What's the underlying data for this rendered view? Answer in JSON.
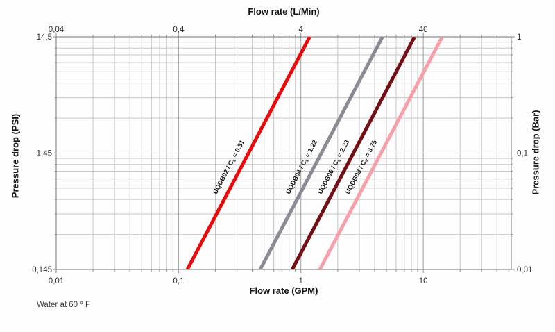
{
  "chart_data": {
    "type": "line",
    "title": "",
    "x_scale": "log",
    "y_scale": "log",
    "xlabel_top": "Flow rate (L/Min)",
    "xlabel_bottom": "Flow rate (GPM)",
    "ylabel_left": "Pressure drop (PSI)",
    "ylabel_right": "Pressure drop (Bar)",
    "note": "Water at 60 ° F",
    "xlim_gpm": [
      0.01,
      52.4
    ],
    "ylim_psi": [
      0.145,
      14.5
    ],
    "ylim_bar": [
      0.01,
      1
    ],
    "grid": true,
    "relationship": "Q_gpm = Cv * sqrt(dP_psi); lines span full pressure range 0.145-14.5 PSI",
    "x_ticks_bottom": [
      {
        "label": "0,01",
        "gpm": 0.01
      },
      {
        "label": "0,1",
        "gpm": 0.1
      },
      {
        "label": "1",
        "gpm": 1
      },
      {
        "label": "10",
        "gpm": 10
      }
    ],
    "x_ticks_top": [
      {
        "label": "0,04",
        "gpm": 0.01
      },
      {
        "label": "0,4",
        "gpm": 0.1
      },
      {
        "label": "4",
        "gpm": 1
      },
      {
        "label": "40",
        "gpm": 10
      }
    ],
    "y_ticks_left": [
      {
        "label": "14,5",
        "psi": 14.5
      },
      {
        "label": "1,45",
        "psi": 1.45
      },
      {
        "label": "0,145",
        "psi": 0.145
      }
    ],
    "y_ticks_right": [
      {
        "label": "1",
        "bar": 1
      },
      {
        "label": "0,1",
        "bar": 0.1
      },
      {
        "label": "0,01",
        "bar": 0.01
      }
    ],
    "series": [
      {
        "model": "UQDB02",
        "cv": 0.31,
        "cv_text": "0.31",
        "label": "UQDB02 / Cv = 0.31",
        "color": "#ea0a0c",
        "points_gpm_psi": [
          [
            0.118,
            0.145
          ],
          [
            1.18,
            14.5
          ]
        ]
      },
      {
        "model": "UQDB04",
        "cv": 1.22,
        "cv_text": "1.22",
        "label": "UQDB04 / Cv = 1.22",
        "color": "#8b8b95",
        "points_gpm_psi": [
          [
            0.465,
            0.145
          ],
          [
            4.646,
            14.5
          ]
        ]
      },
      {
        "model": "UQDB06",
        "cv": 2.23,
        "cv_text": "2.23",
        "label": "UQDB06 / Cv = 2.23",
        "color": "#731013",
        "points_gpm_psi": [
          [
            0.849,
            0.145
          ],
          [
            8.492,
            14.5
          ]
        ]
      },
      {
        "model": "UQDB08",
        "cv": 3.75,
        "cv_text": "3.75",
        "label": "UQDB08 / Cv = 3.75",
        "color": "#f7a0aa",
        "points_gpm_psi": [
          [
            1.428,
            0.145
          ],
          [
            14.281,
            14.5
          ]
        ]
      }
    ]
  },
  "colors": {
    "grid_minor": "#c7c7c7",
    "grid_major": "#9b9b9b",
    "border": "#8a8a8a",
    "tick_text": "#2a2a2a",
    "series_label_text": "#151515",
    "background": "#fefefe"
  }
}
